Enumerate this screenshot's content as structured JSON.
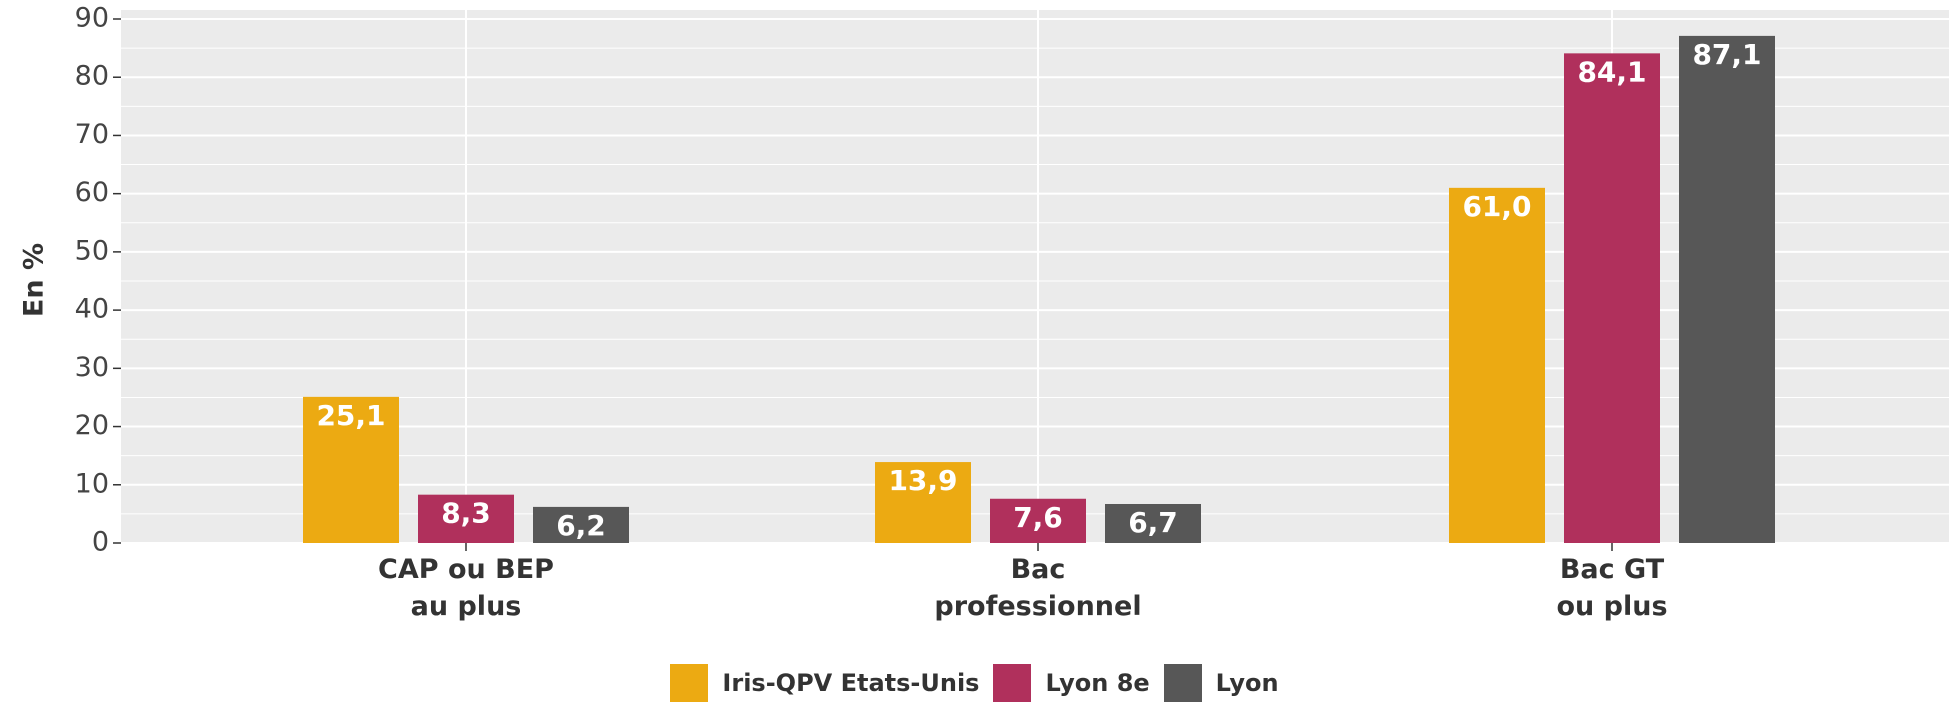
{
  "chart_data": {
    "type": "bar",
    "y_label": "En %",
    "categories": [
      "CAP ou BEP\nau plus",
      "Bac\nprofessionnel",
      "Bac GT\nou plus"
    ],
    "series": [
      {
        "name": "Iris-QPV Etats-Unis",
        "color": "#ecaa12",
        "values": [
          25.1,
          13.9,
          61.0
        ],
        "value_labels": [
          "25,1",
          "13,9",
          "61,0"
        ]
      },
      {
        "name": "Lyon 8e",
        "color": "#b0305c",
        "values": [
          8.3,
          7.6,
          84.1
        ],
        "value_labels": [
          "8,3",
          "7,6",
          "84,1"
        ]
      },
      {
        "name": "Lyon",
        "color": "#575757",
        "values": [
          6.2,
          6.7,
          87.1
        ],
        "value_labels": [
          "6,2",
          "6,7",
          "87,1"
        ]
      }
    ],
    "ylim": [
      0,
      90
    ],
    "yticks": [
      0,
      10,
      20,
      30,
      40,
      50,
      60,
      70,
      80,
      90
    ],
    "yminorticks": [
      5,
      15,
      25,
      35,
      45,
      55,
      65,
      75,
      85
    ],
    "grid": true,
    "legend": "bottom"
  }
}
